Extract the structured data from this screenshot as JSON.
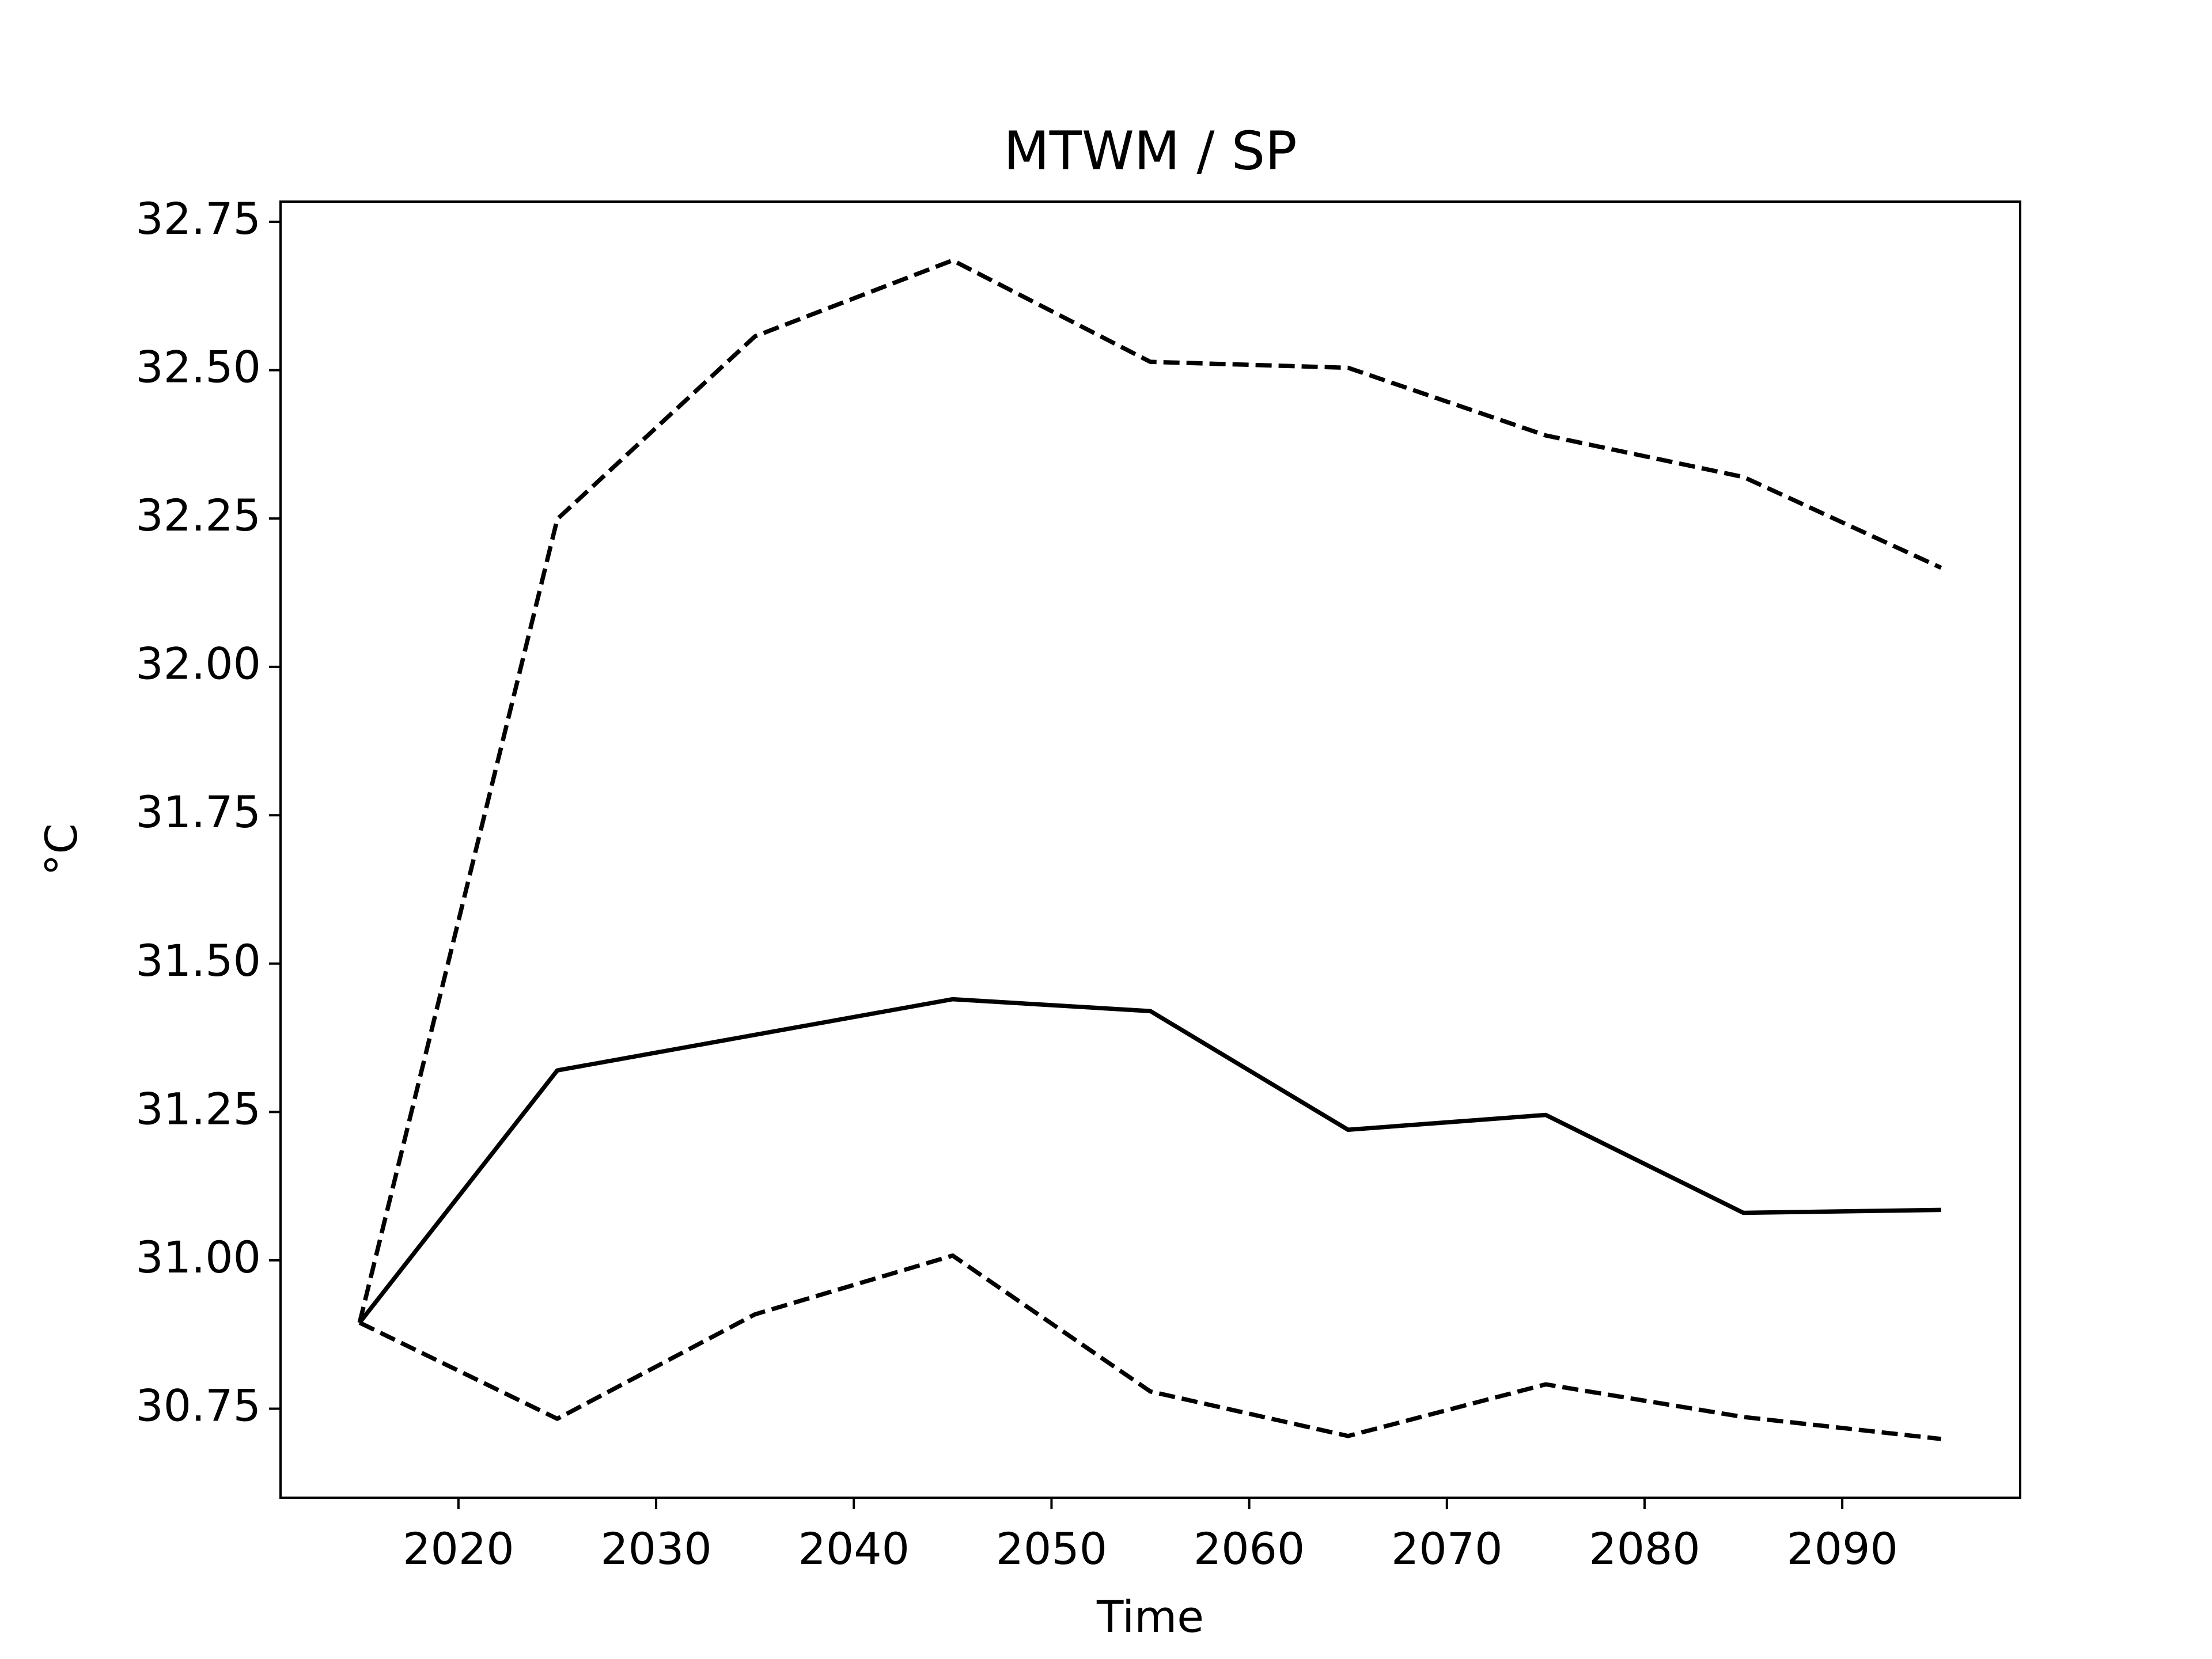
{
  "chart_data": {
    "type": "line",
    "title": "MTWM / SP",
    "xlabel": "Time",
    "ylabel": "°C",
    "x": [
      2015,
      2025,
      2035,
      2045,
      2055,
      2065,
      2075,
      2085,
      2095
    ],
    "series": [
      {
        "color": "#000000",
        "style": "solid",
        "values": [
          30.895,
          31.32,
          31.38,
          31.44,
          31.42,
          31.22,
          31.245,
          31.08,
          31.085
        ]
      },
      {
        "color": "#000000",
        "style": "dashed",
        "values": [
          30.895,
          32.249,
          32.557,
          32.685,
          32.514,
          32.504,
          32.39,
          32.32,
          32.167
        ]
      },
      {
        "color": "#000000",
        "style": "dashed",
        "values": [
          30.895,
          30.733,
          30.909,
          31.008,
          30.779,
          30.704,
          30.791,
          30.736,
          30.699
        ]
      }
    ],
    "xlim": [
      2011,
      2099
    ],
    "xticks": [
      2020,
      2030,
      2040,
      2050,
      2060,
      2070,
      2080,
      2090
    ],
    "ylim": [
      30.6,
      32.784
    ],
    "yticks": [
      {
        "value": 30.75,
        "label": "30.75"
      },
      {
        "value": 31,
        "label": "31.00"
      },
      31.25,
      {
        "value": 31.5,
        "label": "31.50"
      },
      31.75,
      {
        "value": 32,
        "label": "32.00"
      },
      32.25,
      {
        "value": 32.5,
        "label": "32.50"
      },
      32.75
    ],
    "grid": false
  }
}
